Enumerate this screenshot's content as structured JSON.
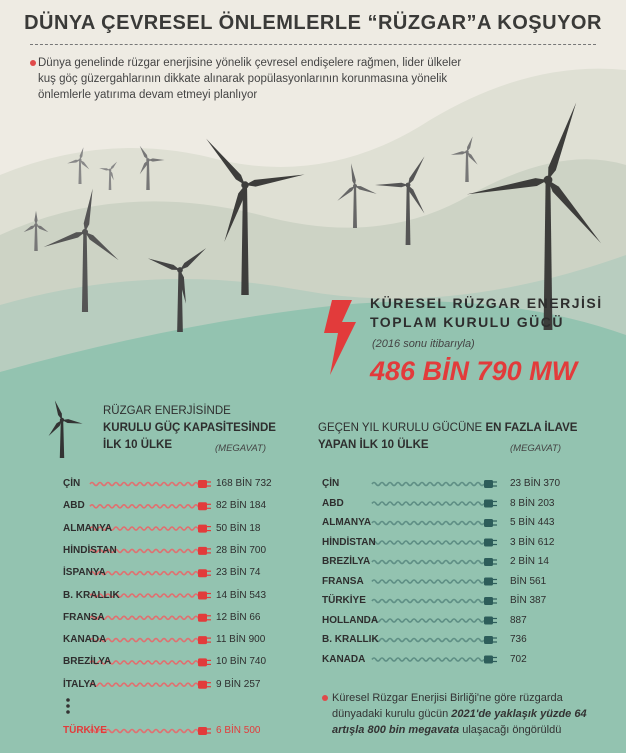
{
  "header": {
    "title": "DÜNYA ÇEVRESEL ÖNLEMLERLE “RÜZGAR”A KOŞUYOR"
  },
  "intro": "Dünya genelinde rüzgar enerjisine yönelik çevresel endişelere rağmen, lider ülkeler kuş göç güzergahlarının dikkate alınarak popülasyonlarının korunmasına yönelik önlemlerle yatırıma devam etmeyi planlıyor",
  "total": {
    "title_lines": [
      "KÜRESEL RÜZGAR ENERJİSİ",
      "TOPLAM KURULU GÜCÜ"
    ],
    "note": "(2016 sonu itibarıyla)",
    "value": "486 BİN 790 MW"
  },
  "left": {
    "title": [
      "RÜZGAR ENERJİSİNDE",
      "KURULU GÜÇ KAPASİTESİNDE",
      "İLK 10 ÜLKE"
    ],
    "unit": "(MEGAVAT)",
    "rows": [
      [
        "ÇİN",
        "168 BİN 732"
      ],
      [
        "ABD",
        "82 BİN 184"
      ],
      [
        "ALMANYA",
        "50 BİN 18"
      ],
      [
        "HİNDİSTAN",
        "28 BİN 700"
      ],
      [
        "İSPANYA",
        "23 BİN 74"
      ],
      [
        "B. KRALLIK",
        "14 BİN 543"
      ],
      [
        "FRANSA",
        "12 BİN 66"
      ],
      [
        "KANADA",
        "11 BİN 900"
      ],
      [
        "BREZİLYA",
        "10 BİN 740"
      ],
      [
        "İTALYA",
        "9 BİN 257"
      ]
    ],
    "turkey": [
      "TÜRKİYE",
      "6 BİN 500"
    ]
  },
  "right": {
    "title": [
      "GEÇEN YIL KURULU GÜCÜNE ",
      "EN FAZLA İLAVE",
      "YAPAN İLK 10 ÜLKE"
    ],
    "unit": "(MEGAVAT)",
    "rows": [
      [
        "ÇİN",
        "23 BİN 370"
      ],
      [
        "ABD",
        "8 BİN 203"
      ],
      [
        "ALMANYA",
        "5 BİN 443"
      ],
      [
        "HİNDİSTAN",
        "3 BİN 612"
      ],
      [
        "BREZİLYA",
        "2 BİN 14"
      ],
      [
        "FRANSA",
        "BİN 561"
      ],
      [
        "TÜRKİYE",
        "BİN 387"
      ],
      [
        "HOLLANDA",
        "887"
      ],
      [
        "B. KRALLIK",
        "736"
      ],
      [
        "KANADA",
        "702"
      ]
    ]
  },
  "footnote": [
    "Küresel Rüzgar Enerjisi Birliği'ne göre rüzgarda dünyadaki kurulu gücün ",
    "2021'de yaklaşık yüzde 64 artışla 800 bin megavata",
    " ulaşacağı öngörüldü"
  ]
}
